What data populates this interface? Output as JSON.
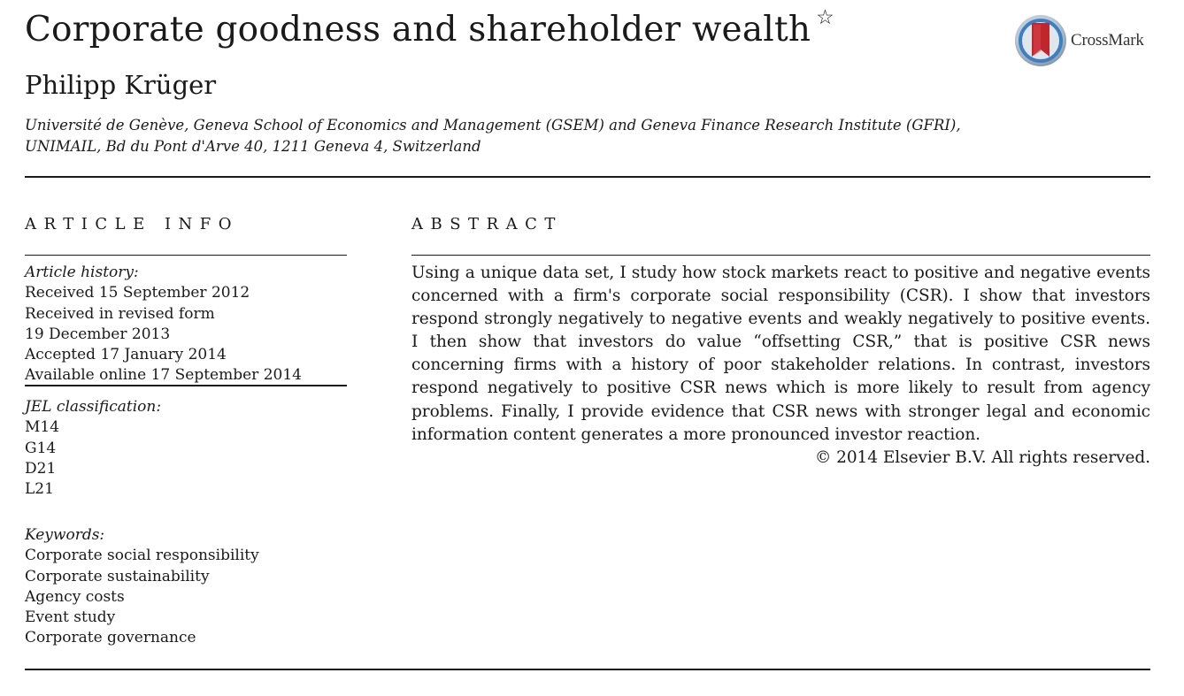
{
  "paper": {
    "title": "Corporate goodness and shareholder wealth",
    "title_note_symbol": "☆",
    "author": "Philipp Krüger",
    "affiliation": "Université de Genève, Geneva School of Economics and Management (GSEM) and Geneva Finance Research Institute (GFRI), UNIMAIL, Bd du Pont d'Arve 40, 1211 Geneva 4, Switzerland",
    "crossmark_label": "CrossMark"
  },
  "article_info": {
    "heading": "ARTICLE INFO",
    "history_label": "Article history:",
    "history": [
      "Received 15 September 2012",
      "Received in revised form",
      "19 December 2013",
      "Accepted 17 January 2014",
      "Available online 17 September 2014"
    ],
    "jel_label": "JEL classification:",
    "jel": [
      "M14",
      "G14",
      "D21",
      "L21"
    ],
    "keywords_label": "Keywords:",
    "keywords": [
      "Corporate social responsibility",
      "Corporate sustainability",
      "Agency costs",
      "Event study",
      "Corporate governance"
    ]
  },
  "abstract": {
    "heading": "ABSTRACT",
    "text": "Using a unique data set, I study how stock markets react to positive and negative events concerned with a firm's corporate social responsibility (CSR). I show that investors respond strongly negatively to negative events and weakly negatively to positive events. I then show that investors do value “offsetting CSR,” that is positive CSR news concerning firms with a history of poor stakeholder relations. In contrast, investors respond negatively to positive CSR news which is more likely to result from agency problems. Finally, I provide evidence that CSR news with stronger legal and economic information content generates a more pronounced investor reaction.",
    "copyright": "© 2014 Elsevier B.V. All rights reserved."
  },
  "colors": {
    "text": "#1a1a1a",
    "crossmark_red": "#c0272d",
    "crossmark_blue": "#3b7fc4"
  }
}
